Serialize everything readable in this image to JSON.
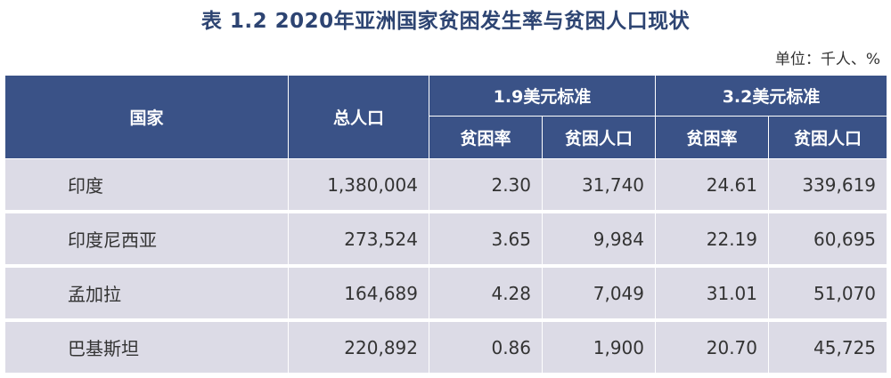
{
  "title": "表 1.2 2020年亚洲国家贫困发生率与贫困人口现状",
  "unit": "单位：千人、%",
  "headers": {
    "country": "国家",
    "total_pop": "总人口",
    "std1": "1.9美元标准",
    "std2": "3.2美元标准",
    "rate": "贫困率",
    "pop": "贫困人口"
  },
  "rows": [
    {
      "country": "印度",
      "total": "1,380,004",
      "rate1": "2.30",
      "pop1": "31,740",
      "rate2": "24.61",
      "pop2": "339,619"
    },
    {
      "country": "印度尼西亚",
      "total": "273,524",
      "rate1": "3.65",
      "pop1": "9,984",
      "rate2": "22.19",
      "pop2": "60,695"
    },
    {
      "country": "孟加拉",
      "total": "164,689",
      "rate1": "4.28",
      "pop1": "7,049",
      "rate2": "31.01",
      "pop2": "51,070"
    },
    {
      "country": "巴基斯坦",
      "total": "220,892",
      "rate1": "0.86",
      "pop1": "1,900",
      "rate2": "20.70",
      "pop2": "45,725"
    }
  ]
}
